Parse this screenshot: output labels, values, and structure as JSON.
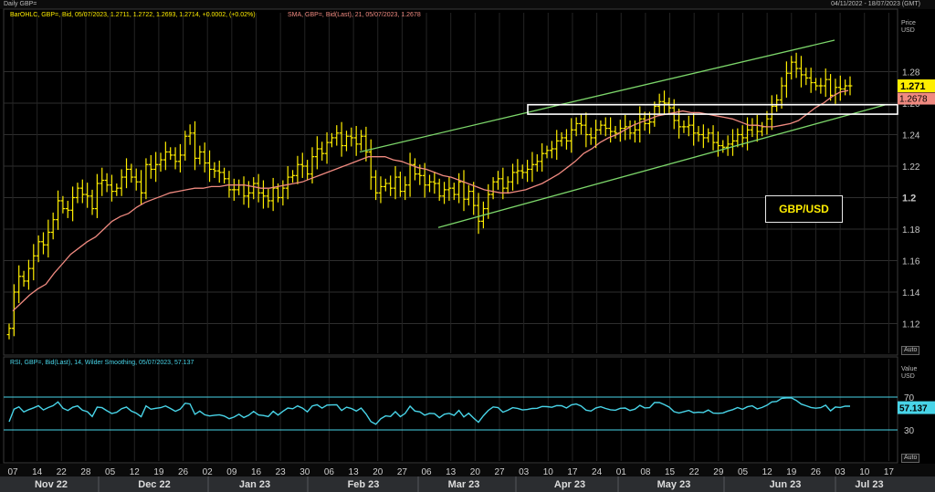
{
  "header": {
    "left_title": "Daily GBP=",
    "date_range": "04/11/2022 - 18/07/2023 (GMT)"
  },
  "price_pane": {
    "legend_ohlc": "BarOHLC, GBP=, Bid, 05/07/2023, 1.2711, 1.2722, 1.2693, 1.2714, +0.0002, (+0.02%)",
    "legend_sma": "SMA, GBP=, Bid(Last),  21, 05/07/2023, 1.2678",
    "axis_title_1": "Price",
    "axis_title_2": "USD",
    "auto_label": "Auto",
    "last_price_label": "1.271",
    "sma_label": "1.2678",
    "annotation": "GBP/USD",
    "colors": {
      "bars": "#ffee00",
      "sma": "#f08a80",
      "channel": "#7cd66a",
      "box": "#ffffff",
      "last_bg": "#ffee00",
      "sma_bg": "#f08a80"
    }
  },
  "rsi_pane": {
    "legend": "RSI, GBP=, Bid(Last), 14, Wilder Smoothing, 05/07/2023, 57.137",
    "axis_title_1": "Value",
    "axis_title_2": "USD",
    "auto_label": "Auto",
    "last_value_label": "57.137",
    "colors": {
      "line": "#48d4e8",
      "levels": "#48d4e8",
      "last_bg": "#48d4e8"
    }
  },
  "chart_data": [
    {
      "type": "ohlc",
      "title": "Daily GBP=",
      "x_axis": {
        "day_ticks": [
          "07",
          "14",
          "22",
          "28",
          "05",
          "12",
          "19",
          "26",
          "02",
          "09",
          "16",
          "23",
          "30",
          "06",
          "13",
          "20",
          "27",
          "06",
          "13",
          "20",
          "27",
          "03",
          "10",
          "17",
          "24",
          "01",
          "08",
          "15",
          "22",
          "29",
          "05",
          "12",
          "19",
          "26",
          "03",
          "10",
          "17"
        ],
        "months": [
          "Nov 22",
          "Dec 22",
          "Jan 23",
          "Feb 23",
          "Mar 23",
          "Apr 23",
          "May 23",
          "Jun 23",
          "Jul 23"
        ]
      },
      "y_axis": {
        "ticks": [
          "1.12",
          "1.14",
          "1.16",
          "1.18",
          "1.2",
          "1.22",
          "1.24",
          "1.26",
          "1.28"
        ],
        "range": [
          1.1,
          1.305
        ]
      },
      "series": [
        {
          "name": "BarOHLC",
          "close": [
            1.117,
            1.14,
            1.15,
            1.147,
            1.155,
            1.163,
            1.172,
            1.17,
            1.178,
            1.186,
            1.198,
            1.193,
            1.192,
            1.2,
            1.206,
            1.202,
            1.201,
            1.193,
            1.209,
            1.211,
            1.208,
            1.204,
            1.206,
            1.213,
            1.218,
            1.213,
            1.21,
            1.203,
            1.221,
            1.218,
            1.221,
            1.224,
            1.229,
            1.227,
            1.223,
            1.227,
            1.239,
            1.241,
            1.225,
            1.229,
            1.222,
            1.218,
            1.217,
            1.216,
            1.212,
            1.205,
            1.205,
            1.208,
            1.201,
            1.203,
            1.209,
            1.203,
            1.201,
            1.198,
            1.206,
            1.2,
            1.206,
            1.213,
            1.214,
            1.221,
            1.22,
            1.215,
            1.226,
            1.231,
            1.228,
            1.235,
            1.238,
            1.241,
            1.233,
            1.239,
            1.238,
            1.234,
            1.239,
            1.229,
            1.213,
            1.203,
            1.207,
            1.209,
            1.206,
            1.213,
            1.204,
            1.208,
            1.221,
            1.215,
            1.214,
            1.208,
            1.21,
            1.209,
            1.201,
            1.205,
            1.206,
            1.202,
            1.21,
            1.199,
            1.204,
            1.195,
            1.185,
            1.193,
            1.202,
            1.21,
            1.212,
            1.206,
            1.21,
            1.216,
            1.217,
            1.216,
            1.218,
            1.221,
            1.223,
            1.228,
            1.23,
            1.231,
            1.236,
            1.238,
            1.236,
            1.243,
            1.247,
            1.246,
            1.24,
            1.238,
            1.243,
            1.246,
            1.244,
            1.242,
            1.241,
            1.244,
            1.245,
            1.241,
            1.243,
            1.25,
            1.247,
            1.248,
            1.258,
            1.261,
            1.26,
            1.257,
            1.249,
            1.245,
            1.245,
            1.246,
            1.241,
            1.24,
            1.238,
            1.241,
            1.235,
            1.233,
            1.232,
            1.234,
            1.236,
            1.24,
            1.238,
            1.243,
            1.246,
            1.242,
            1.245,
            1.25,
            1.258,
            1.262,
            1.271,
            1.279,
            1.286,
            1.282,
            1.278,
            1.276,
            1.273,
            1.271,
            1.271,
            1.275,
            1.265,
            1.27,
            1.269,
            1.271,
            1.271
          ]
        },
        {
          "name": "SMA (21)",
          "values": [
            1.128,
            1.133,
            1.138,
            1.142,
            1.145,
            1.152,
            1.158,
            1.164,
            1.168,
            1.172,
            1.175,
            1.18,
            1.185,
            1.188,
            1.19,
            1.194,
            1.197,
            1.199,
            1.201,
            1.203,
            1.204,
            1.205,
            1.206,
            1.206,
            1.207,
            1.207,
            1.208,
            1.208,
            1.208,
            1.207,
            1.206,
            1.206,
            1.207,
            1.208,
            1.209,
            1.21,
            1.212,
            1.214,
            1.216,
            1.218,
            1.22,
            1.222,
            1.224,
            1.226,
            1.226,
            1.226,
            1.224,
            1.223,
            1.221,
            1.219,
            1.218,
            1.216,
            1.214,
            1.213,
            1.211,
            1.209,
            1.207,
            1.205,
            1.204,
            1.203,
            1.203,
            1.204,
            1.205,
            1.207,
            1.209,
            1.212,
            1.215,
            1.219,
            1.223,
            1.228,
            1.231,
            1.235,
            1.238,
            1.24,
            1.243,
            1.246,
            1.248,
            1.25,
            1.252,
            1.253,
            1.254,
            1.255,
            1.254,
            1.254,
            1.253,
            1.252,
            1.251,
            1.25,
            1.248,
            1.246,
            1.246,
            1.245,
            1.245,
            1.246,
            1.247,
            1.249,
            1.253,
            1.257,
            1.26,
            1.264,
            1.267,
            1.268
          ]
        }
      ],
      "last_price": 1.271,
      "sma_last": 1.2678,
      "channel": {
        "upper": [
          [
            1.229,
            1.3
          ]
        ],
        "lower": [
          [
            1.181,
            1.259
          ]
        ]
      },
      "resistance_zone": [
        1.253,
        1.259
      ],
      "annotations": [
        "GBP/USD"
      ]
    },
    {
      "type": "line",
      "title": "RSI (14, Wilder Smoothing)",
      "y_axis": {
        "ticks": [
          "70",
          "30"
        ],
        "range": [
          0,
          100
        ]
      },
      "levels": [
        70,
        30
      ],
      "last_value": 57.137
    }
  ]
}
